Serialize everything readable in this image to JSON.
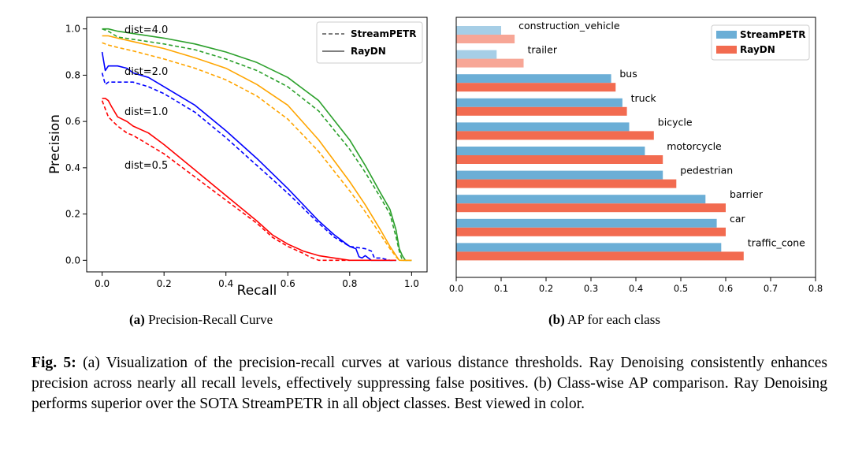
{
  "figure_a": {
    "subcaption_label": "(a)",
    "subcaption_text": "Precision-Recall Curve"
  },
  "figure_b": {
    "subcaption_label": "(b)",
    "subcaption_text": "AP for each class"
  },
  "caption": {
    "label": "Fig. 5:",
    "text": "(a) Visualization of the precision-recall curves at various distance thresholds. Ray Denoising consistently enhances precision across nearly all recall levels, effectively suppressing false positives. (b) Class-wise AP comparison. Ray Denoising performs superior over the SOTA StreamPETR in all object classes. Best viewed in color."
  },
  "chart_data": [
    {
      "type": "line",
      "title": "",
      "xlabel": "Recall",
      "ylabel": "Precision",
      "xlim": [
        -0.05,
        1.05
      ],
      "ylim": [
        -0.05,
        1.05
      ],
      "xticks": [
        "0.0",
        "0.2",
        "0.4",
        "0.6",
        "0.8",
        "1.0"
      ],
      "yticks": [
        "0.0",
        "0.2",
        "0.4",
        "0.6",
        "0.8",
        "1.0"
      ],
      "grid": false,
      "legend": {
        "position": "top-right",
        "entries": [
          {
            "label": "StreamPETR",
            "style": "dashed"
          },
          {
            "label": "RayDN",
            "style": "solid"
          }
        ]
      },
      "annotations": [
        {
          "text": "dist=4.0",
          "x": 0.08,
          "y": 1.0
        },
        {
          "text": "dist=2.0",
          "x": 0.08,
          "y": 0.82
        },
        {
          "text": "dist=1.0",
          "x": 0.08,
          "y": 0.64
        },
        {
          "text": "dist=0.5",
          "x": 0.08,
          "y": 0.4
        }
      ],
      "series": [
        {
          "name": "dist=4.0 RayDN",
          "threshold": "4.0",
          "method": "RayDN",
          "color": "#2ca02c",
          "style": "solid",
          "points": [
            [
              0,
              1.0
            ],
            [
              0.02,
              1.0
            ],
            [
              0.05,
              0.99
            ],
            [
              0.1,
              0.98
            ],
            [
              0.2,
              0.96
            ],
            [
              0.3,
              0.935
            ],
            [
              0.4,
              0.9
            ],
            [
              0.5,
              0.855
            ],
            [
              0.6,
              0.79
            ],
            [
              0.7,
              0.69
            ],
            [
              0.8,
              0.52
            ],
            [
              0.85,
              0.41
            ],
            [
              0.9,
              0.29
            ],
            [
              0.93,
              0.22
            ],
            [
              0.95,
              0.13
            ],
            [
              0.96,
              0.05
            ],
            [
              0.97,
              0.02
            ],
            [
              0.98,
              0.0
            ],
            [
              1.0,
              0.0
            ]
          ]
        },
        {
          "name": "dist=4.0 StreamPETR",
          "threshold": "4.0",
          "method": "StreamPETR",
          "color": "#2ca02c",
          "style": "dashed",
          "points": [
            [
              0,
              1.0
            ],
            [
              0.02,
              0.99
            ],
            [
              0.05,
              0.965
            ],
            [
              0.1,
              0.955
            ],
            [
              0.2,
              0.935
            ],
            [
              0.3,
              0.91
            ],
            [
              0.4,
              0.87
            ],
            [
              0.5,
              0.82
            ],
            [
              0.6,
              0.75
            ],
            [
              0.7,
              0.645
            ],
            [
              0.8,
              0.48
            ],
            [
              0.85,
              0.38
            ],
            [
              0.9,
              0.27
            ],
            [
              0.93,
              0.2
            ],
            [
              0.95,
              0.1
            ],
            [
              0.96,
              0.04
            ],
            [
              0.97,
              0.0
            ],
            [
              1.0,
              0.0
            ]
          ]
        },
        {
          "name": "dist=2.0 RayDN",
          "threshold": "2.0",
          "method": "RayDN",
          "color": "#ffa500",
          "style": "solid",
          "points": [
            [
              0,
              0.97
            ],
            [
              0.02,
              0.97
            ],
            [
              0.05,
              0.96
            ],
            [
              0.1,
              0.945
            ],
            [
              0.2,
              0.915
            ],
            [
              0.3,
              0.875
            ],
            [
              0.4,
              0.83
            ],
            [
              0.5,
              0.76
            ],
            [
              0.6,
              0.67
            ],
            [
              0.7,
              0.52
            ],
            [
              0.8,
              0.34
            ],
            [
              0.85,
              0.24
            ],
            [
              0.9,
              0.13
            ],
            [
              0.93,
              0.06
            ],
            [
              0.95,
              0.02
            ],
            [
              0.96,
              0.0
            ],
            [
              1.0,
              0.0
            ]
          ]
        },
        {
          "name": "dist=2.0 StreamPETR",
          "threshold": "2.0",
          "method": "StreamPETR",
          "color": "#ffa500",
          "style": "dashed",
          "points": [
            [
              0,
              0.94
            ],
            [
              0.02,
              0.93
            ],
            [
              0.05,
              0.92
            ],
            [
              0.1,
              0.905
            ],
            [
              0.2,
              0.87
            ],
            [
              0.3,
              0.83
            ],
            [
              0.4,
              0.78
            ],
            [
              0.5,
              0.71
            ],
            [
              0.6,
              0.61
            ],
            [
              0.7,
              0.47
            ],
            [
              0.8,
              0.3
            ],
            [
              0.85,
              0.21
            ],
            [
              0.9,
              0.11
            ],
            [
              0.93,
              0.05
            ],
            [
              0.95,
              0.015
            ],
            [
              0.96,
              0.0
            ],
            [
              1.0,
              0.0
            ]
          ]
        },
        {
          "name": "dist=1.0 RayDN",
          "threshold": "1.0",
          "method": "RayDN",
          "color": "#0000ff",
          "style": "solid",
          "points": [
            [
              0,
              0.9
            ],
            [
              0.01,
              0.82
            ],
            [
              0.02,
              0.84
            ],
            [
              0.05,
              0.84
            ],
            [
              0.08,
              0.83
            ],
            [
              0.1,
              0.81
            ],
            [
              0.15,
              0.79
            ],
            [
              0.2,
              0.75
            ],
            [
              0.3,
              0.67
            ],
            [
              0.4,
              0.56
            ],
            [
              0.5,
              0.44
            ],
            [
              0.6,
              0.31
            ],
            [
              0.7,
              0.17
            ],
            [
              0.75,
              0.11
            ],
            [
              0.8,
              0.06
            ],
            [
              0.82,
              0.05
            ],
            [
              0.83,
              0.015
            ],
            [
              0.84,
              0.01
            ],
            [
              0.85,
              0.02
            ],
            [
              0.87,
              0.0
            ],
            [
              0.95,
              0.0
            ]
          ]
        },
        {
          "name": "dist=1.0 StreamPETR",
          "threshold": "1.0",
          "method": "StreamPETR",
          "color": "#0000ff",
          "style": "dashed",
          "points": [
            [
              0,
              0.81
            ],
            [
              0.01,
              0.76
            ],
            [
              0.02,
              0.77
            ],
            [
              0.05,
              0.77
            ],
            [
              0.1,
              0.77
            ],
            [
              0.15,
              0.75
            ],
            [
              0.2,
              0.72
            ],
            [
              0.3,
              0.64
            ],
            [
              0.4,
              0.53
            ],
            [
              0.5,
              0.41
            ],
            [
              0.6,
              0.29
            ],
            [
              0.7,
              0.16
            ],
            [
              0.75,
              0.1
            ],
            [
              0.8,
              0.06
            ],
            [
              0.85,
              0.05
            ],
            [
              0.87,
              0.04
            ],
            [
              0.88,
              0.01
            ],
            [
              0.9,
              0.01
            ],
            [
              0.93,
              0.0
            ],
            [
              0.95,
              0.0
            ]
          ]
        },
        {
          "name": "dist=0.5 RayDN",
          "threshold": "0.5",
          "method": "RayDN",
          "color": "#ff0000",
          "style": "solid",
          "points": [
            [
              0,
              0.7
            ],
            [
              0.01,
              0.7
            ],
            [
              0.02,
              0.69
            ],
            [
              0.03,
              0.665
            ],
            [
              0.05,
              0.62
            ],
            [
              0.08,
              0.6
            ],
            [
              0.1,
              0.58
            ],
            [
              0.15,
              0.55
            ],
            [
              0.2,
              0.5
            ],
            [
              0.3,
              0.39
            ],
            [
              0.4,
              0.28
            ],
            [
              0.5,
              0.17
            ],
            [
              0.55,
              0.11
            ],
            [
              0.6,
              0.07
            ],
            [
              0.65,
              0.04
            ],
            [
              0.7,
              0.02
            ],
            [
              0.75,
              0.01
            ],
            [
              0.8,
              0.0
            ],
            [
              0.95,
              0.0
            ]
          ]
        },
        {
          "name": "dist=0.5 StreamPETR",
          "threshold": "0.5",
          "method": "StreamPETR",
          "color": "#ff0000",
          "style": "dashed",
          "points": [
            [
              0,
              0.69
            ],
            [
              0.02,
              0.62
            ],
            [
              0.05,
              0.58
            ],
            [
              0.08,
              0.55
            ],
            [
              0.1,
              0.54
            ],
            [
              0.15,
              0.5
            ],
            [
              0.2,
              0.46
            ],
            [
              0.3,
              0.36
            ],
            [
              0.4,
              0.26
            ],
            [
              0.5,
              0.16
            ],
            [
              0.55,
              0.1
            ],
            [
              0.6,
              0.06
            ],
            [
              0.65,
              0.03
            ],
            [
              0.67,
              0.015
            ],
            [
              0.7,
              0.0
            ],
            [
              0.8,
              0.0
            ]
          ]
        }
      ]
    },
    {
      "type": "bar",
      "orientation": "horizontal",
      "title": "",
      "xlabel": "",
      "ylabel": "",
      "xlim": [
        0,
        0.8
      ],
      "xticks": [
        "0.0",
        "0.1",
        "0.2",
        "0.3",
        "0.4",
        "0.5",
        "0.6",
        "0.7",
        "0.8"
      ],
      "grid": false,
      "legend": {
        "position": "top-right"
      },
      "categories": [
        "construction_vehicle",
        "trailer",
        "bus",
        "truck",
        "bicycle",
        "motorcycle",
        "pedestrian",
        "barrier",
        "car",
        "traffic_cone"
      ],
      "series": [
        {
          "name": "StreamPETR",
          "color": "#6baed6",
          "values": [
            0.1,
            0.09,
            0.345,
            0.37,
            0.385,
            0.42,
            0.46,
            0.555,
            0.58,
            0.59
          ]
        },
        {
          "name": "RayDN",
          "color": "#f26b50",
          "values": [
            0.13,
            0.15,
            0.355,
            0.38,
            0.44,
            0.46,
            0.49,
            0.6,
            0.6,
            0.64
          ]
        }
      ]
    }
  ]
}
